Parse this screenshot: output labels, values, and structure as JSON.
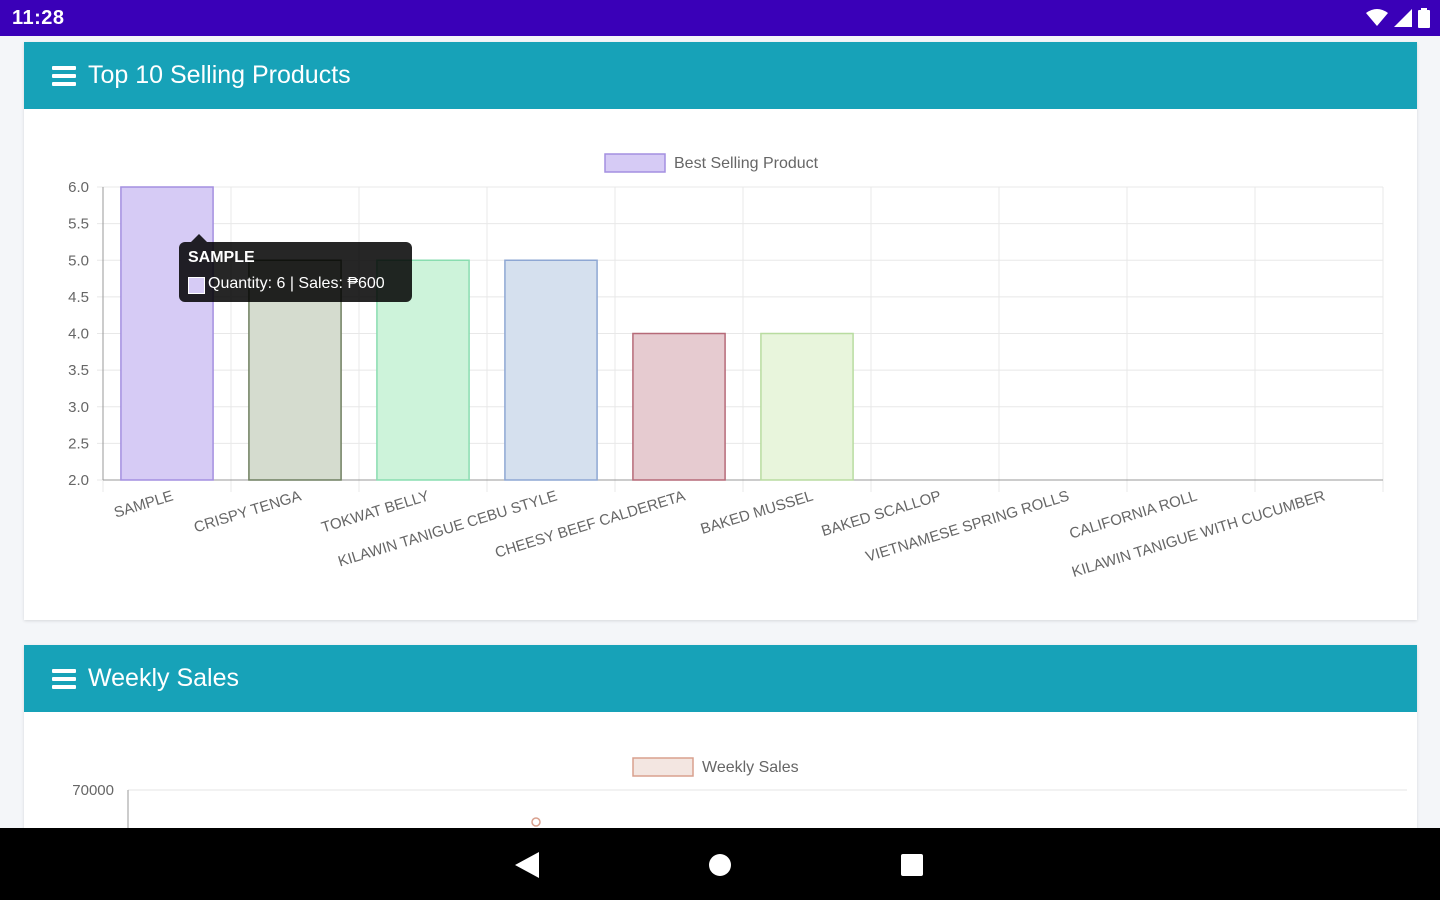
{
  "status_bar": {
    "time": "11:28",
    "icons": [
      "wifi-icon",
      "signal-icon",
      "battery-icon"
    ]
  },
  "top_products": {
    "title": "Top 10 Selling Products",
    "legend": "Best Selling Product",
    "tooltip": {
      "title": "SAMPLE",
      "text": "Quantity: 6 | Sales: ₱600"
    },
    "chart_data": {
      "type": "bar",
      "categories": [
        "SAMPLE",
        "CRISPY TENGA",
        "TOKWAT BELLY",
        "KILAWIN TANIGUE CEBU STYLE",
        "CHEESY BEEF CALDERETA",
        "BAKED MUSSEL",
        "BAKED SCALLOP",
        "VIETNAMESE SPRING ROLLS",
        "CALIFORNIA ROLL",
        "KILAWIN TANIGUE WITH CUCUMBER"
      ],
      "series": [
        {
          "name": "Best Selling Product",
          "values": [
            6,
            5,
            5,
            5,
            4,
            4,
            2,
            2,
            2,
            2
          ]
        }
      ],
      "ylim": [
        2.0,
        6.0
      ],
      "yticks": [
        "6.0",
        "5.5",
        "5.0",
        "4.5",
        "4.0",
        "3.5",
        "3.0",
        "2.5",
        "2.0"
      ],
      "bar_colors": [
        "#d6cbf5",
        "#d5dccf",
        "#cdf3da",
        "#d5e0ee",
        "#e6cbd0",
        "#e8f5dc",
        "#eeeeee",
        "#eeeeee",
        "#eeeeee",
        "#eeeeee"
      ],
      "bar_borders": [
        "#a48fe0",
        "#6f7f60",
        "#89ddb0",
        "#8ea7d3",
        "#b66a78",
        "#b8dca0",
        "#cccccc",
        "#cccccc",
        "#cccccc",
        "#cccccc"
      ],
      "grid": true,
      "legend_position": "top"
    }
  },
  "weekly_sales": {
    "title": "Weekly Sales",
    "legend": "Weekly Sales",
    "chart_data": {
      "type": "line",
      "series": [
        {
          "name": "Weekly Sales",
          "values": []
        }
      ],
      "yticks": [
        "70000"
      ],
      "grid": true,
      "legend_position": "top",
      "color": "#d9a08e"
    }
  },
  "nav_bar": {
    "icons": [
      "back-icon",
      "home-icon",
      "recents-icon"
    ]
  }
}
